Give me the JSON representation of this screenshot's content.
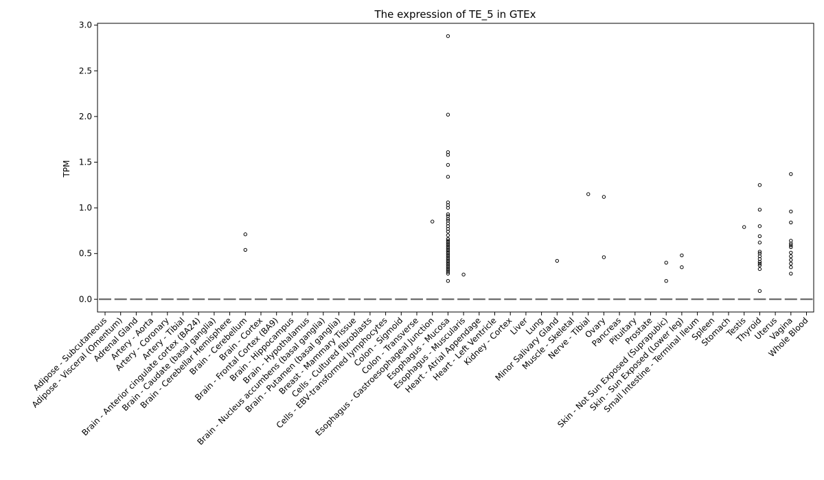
{
  "chart_data": {
    "type": "boxplot",
    "title": "The expression of TE_5 in GTEx",
    "xlabel": "",
    "ylabel": "TPM",
    "ylim": [
      -0.14,
      3.02
    ],
    "yticks": [
      0.0,
      0.5,
      1.0,
      1.5,
      2.0,
      2.5,
      3.0
    ],
    "ytick_labels": [
      "0.0",
      "0.5",
      "1.0",
      "1.5",
      "2.0",
      "2.5",
      "3.0"
    ],
    "grid": false,
    "legend": "none",
    "median_color": "#555555",
    "categories": [
      "Adipose - Subcutaneous",
      "Adipose - Visceral (Omentum)",
      "Adrenal Gland",
      "Artery - Aorta",
      "Artery - Coronary",
      "Artery - Tibial",
      "Brain - Anterior cingulate cortex (BA24)",
      "Brain - Caudate (basal ganglia)",
      "Brain - Cerebellar Hemisphere",
      "Brain - Cerebellum",
      "Brain - Cortex",
      "Brain - Frontal Cortex (BA9)",
      "Brain - Hippocampus",
      "Brain - Hypothalamus",
      "Brain - Nucleus accumbens (basal ganglia)",
      "Brain - Putamen (basal ganglia)",
      "Breast - Mammary Tissue",
      "Cells - Cultured fibroblasts",
      "Cells - EBV-transformed lymphocytes",
      "Colon - Sigmoid",
      "Colon - Transverse",
      "Esophagus - Gastroesophageal Junction",
      "Esophagus - Mucosa",
      "Esophagus - Muscularis",
      "Heart - Atrial Appendage",
      "Heart - Left Ventricle",
      "Kidney - Cortex",
      "Liver",
      "Lung",
      "Minor Salivary Gland",
      "Muscle - Skeletal",
      "Nerve - Tibial",
      "Ovary",
      "Pancreas",
      "Pituitary",
      "Prostate",
      "Skin - Not Sun Exposed (Suprapubic)",
      "Skin - Sun Exposed (Lower leg)",
      "Small Intestine - Terminal Ileum",
      "Spleen",
      "Stomach",
      "Testis",
      "Thyroid",
      "Uterus",
      "Vagina",
      "Whole Blood"
    ],
    "medians": [
      0,
      0,
      0,
      0,
      0,
      0,
      0,
      0,
      0,
      0,
      0,
      0,
      0,
      0,
      0,
      0,
      0,
      0,
      0,
      0,
      0,
      0,
      0,
      0,
      0,
      0,
      0,
      0,
      0,
      0,
      0,
      0,
      0,
      0,
      0,
      0,
      0,
      0,
      0,
      0,
      0,
      0,
      0,
      0,
      0,
      0
    ],
    "outliers": [
      [],
      [],
      [],
      [],
      [],
      [],
      [],
      [],
      [],
      [
        0.71,
        0.54
      ],
      [],
      [],
      [],
      [],
      [],
      [],
      [],
      [],
      [],
      [],
      [],
      [
        0.85
      ],
      [
        2.88,
        2.02,
        1.61,
        1.58,
        1.47,
        1.34,
        1.06,
        1.03,
        1.0,
        0.93,
        0.91,
        0.88,
        0.86,
        0.83,
        0.8,
        0.77,
        0.74,
        0.7,
        0.66,
        0.64,
        0.62,
        0.6,
        0.58,
        0.56,
        0.54,
        0.52,
        0.5,
        0.48,
        0.46,
        0.44,
        0.42,
        0.4,
        0.38,
        0.36,
        0.34,
        0.32,
        0.3,
        0.28,
        0.2
      ],
      [
        0.27
      ],
      [],
      [],
      [],
      [],
      [],
      [
        0.42
      ],
      [],
      [
        1.15
      ],
      [
        1.12,
        0.46
      ],
      [],
      [],
      [],
      [
        0.4,
        0.2
      ],
      [
        0.48,
        0.35
      ],
      [],
      [],
      [],
      [
        0.79
      ],
      [
        1.25,
        0.98,
        0.8,
        0.69,
        0.62,
        0.52,
        0.5,
        0.47,
        0.44,
        0.41,
        0.39,
        0.37,
        0.33,
        0.09
      ],
      [],
      [
        1.37,
        0.96,
        0.84,
        0.64,
        0.61,
        0.59,
        0.57,
        0.51,
        0.47,
        0.43,
        0.39,
        0.35,
        0.28
      ],
      []
    ]
  }
}
